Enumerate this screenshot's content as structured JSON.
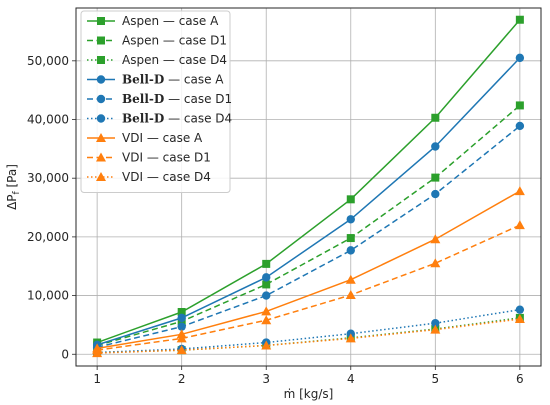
{
  "chart_data": {
    "type": "line",
    "xlabel": "ṁ [kg/s]",
    "ylabel": "ΔPf [Pa]",
    "ylabel_main": "ΔP",
    "ylabel_sub": "f",
    "ylabel_unit": " [Pa]",
    "x": [
      1,
      2,
      3,
      4,
      5,
      6
    ],
    "xlim": [
      0.75,
      6.25
    ],
    "ylim": [
      -2000,
      59000
    ],
    "x_ticks": [
      1,
      2,
      3,
      4,
      5,
      6
    ],
    "y_ticks": [
      0,
      10000,
      20000,
      30000,
      40000,
      50000
    ],
    "y_tick_labels": [
      "0",
      "10,000",
      "20,000",
      "30,000",
      "40,000",
      "50,000"
    ],
    "grid": true,
    "legend_position": "top-left",
    "series": [
      {
        "name": "Aspen — case A",
        "prefix": "Aspen",
        "suffix": " — case A",
        "color": "#2ca02c",
        "dash": "solid",
        "marker": "square",
        "values": [
          2000,
          7200,
          15400,
          26400,
          40300,
          57000
        ]
      },
      {
        "name": "Aspen — case D1",
        "prefix": "Aspen",
        "suffix": " — case D1",
        "color": "#2ca02c",
        "dash": "dashed",
        "marker": "square",
        "values": [
          1500,
          5600,
          11900,
          19800,
          30100,
          42400
        ]
      },
      {
        "name": "Aspen — case D4",
        "prefix": "Aspen",
        "suffix": " — case D4",
        "color": "#2ca02c",
        "dash": "dotted",
        "marker": "square",
        "values": [
          300,
          700,
          1500,
          2800,
          4300,
          6200
        ]
      },
      {
        "name": "Bell-D — case A",
        "prefix": "Bell-D",
        "suffix": " — case A",
        "color": "#1f77b4",
        "dash": "solid",
        "marker": "circle",
        "serif": true,
        "values": [
          1600,
          6200,
          13100,
          23000,
          35400,
          50500
        ]
      },
      {
        "name": "Bell-D — case D1",
        "prefix": "Bell-D",
        "suffix": " — case D1",
        "color": "#1f77b4",
        "dash": "dashed",
        "marker": "circle",
        "serif": true,
        "values": [
          1200,
          4700,
          10000,
          17700,
          27300,
          38900
        ]
      },
      {
        "name": "Bell-D — case D4",
        "prefix": "Bell-D",
        "suffix": " — case D4",
        "color": "#1f77b4",
        "dash": "dotted",
        "marker": "circle",
        "serif": true,
        "values": [
          300,
          900,
          2000,
          3500,
          5300,
          7600
        ]
      },
      {
        "name": "VDI — case A",
        "prefix": "VDI",
        "suffix": " — case A",
        "color": "#ff7f0e",
        "dash": "solid",
        "marker": "triangle",
        "values": [
          1000,
          3400,
          7300,
          12700,
          19600,
          27800
        ]
      },
      {
        "name": "VDI — case D1",
        "prefix": "VDI",
        "suffix": " — case D1",
        "color": "#ff7f0e",
        "dash": "dashed",
        "marker": "triangle",
        "values": [
          700,
          2700,
          5800,
          10100,
          15500,
          22000
        ]
      },
      {
        "name": "VDI — case D4",
        "prefix": "VDI",
        "suffix": " — case D4",
        "color": "#ff7f0e",
        "dash": "dotted",
        "marker": "triangle",
        "values": [
          200,
          700,
          1500,
          2700,
          4200,
          6000
        ]
      }
    ]
  }
}
